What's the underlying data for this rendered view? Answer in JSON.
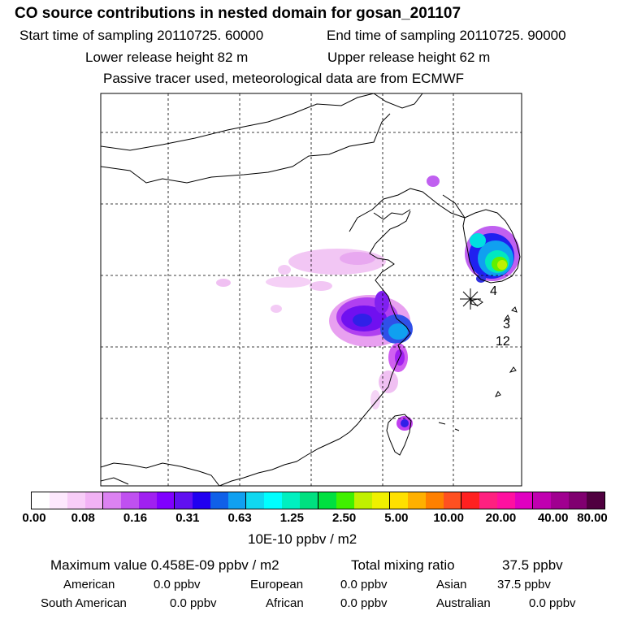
{
  "header": {
    "title": "CO  source contributions in nested domain for gosan_201107",
    "start_time": "Start time of sampling 20110725. 60000",
    "end_time": "End time of sampling 20110725. 90000",
    "lower_release": "Lower release height   82 m",
    "upper_release": "Upper release height   62 m",
    "tracer_note": "Passive tracer used, meteorological data are from ECMWF"
  },
  "map": {
    "labels": [
      "4",
      "3",
      "12"
    ],
    "receptor_marker": "star-icon"
  },
  "colorbar": {
    "colors": [
      "#ffffff",
      "#fde8fd",
      "#f8cdf8",
      "#f2b2f5",
      "#dc82f2",
      "#c050f0",
      "#a020f0",
      "#8000ff",
      "#6010f0",
      "#2000f0",
      "#1060e8",
      "#10a0f0",
      "#10d8f0",
      "#00ffff",
      "#00f0c0",
      "#00e080",
      "#00e040",
      "#40f000",
      "#c0f000",
      "#f0f000",
      "#ffe000",
      "#ffb000",
      "#ff8000",
      "#ff5020",
      "#ff2020",
      "#ff2080",
      "#ff10a0",
      "#e000c0",
      "#c000b0",
      "#a00090",
      "#800070",
      "#500040"
    ],
    "tick_labels": [
      "0.00",
      "0.08",
      "0.16",
      "0.31",
      "0.63",
      "1.25",
      "2.50",
      "5.00",
      "10.00",
      "20.00",
      "40.00",
      "80.00"
    ],
    "unit": "10E-10 ppbv / m2"
  },
  "summary": {
    "maximum_value": "Maximum value  0.458E-09 ppbv / m2",
    "total_mixing_ratio_label": "Total mixing ratio",
    "total_mixing_ratio_value": "37.5 ppbv",
    "regions": [
      {
        "name": "American",
        "value": "0.0 ppbv"
      },
      {
        "name": "European",
        "value": "0.0 ppbv"
      },
      {
        "name": "Asian",
        "value": "37.5 ppbv"
      },
      {
        "name": "South American",
        "value": "0.0 ppbv"
      },
      {
        "name": "African",
        "value": "0.0 ppbv"
      },
      {
        "name": "Australian",
        "value": "0.0 ppbv"
      }
    ]
  }
}
